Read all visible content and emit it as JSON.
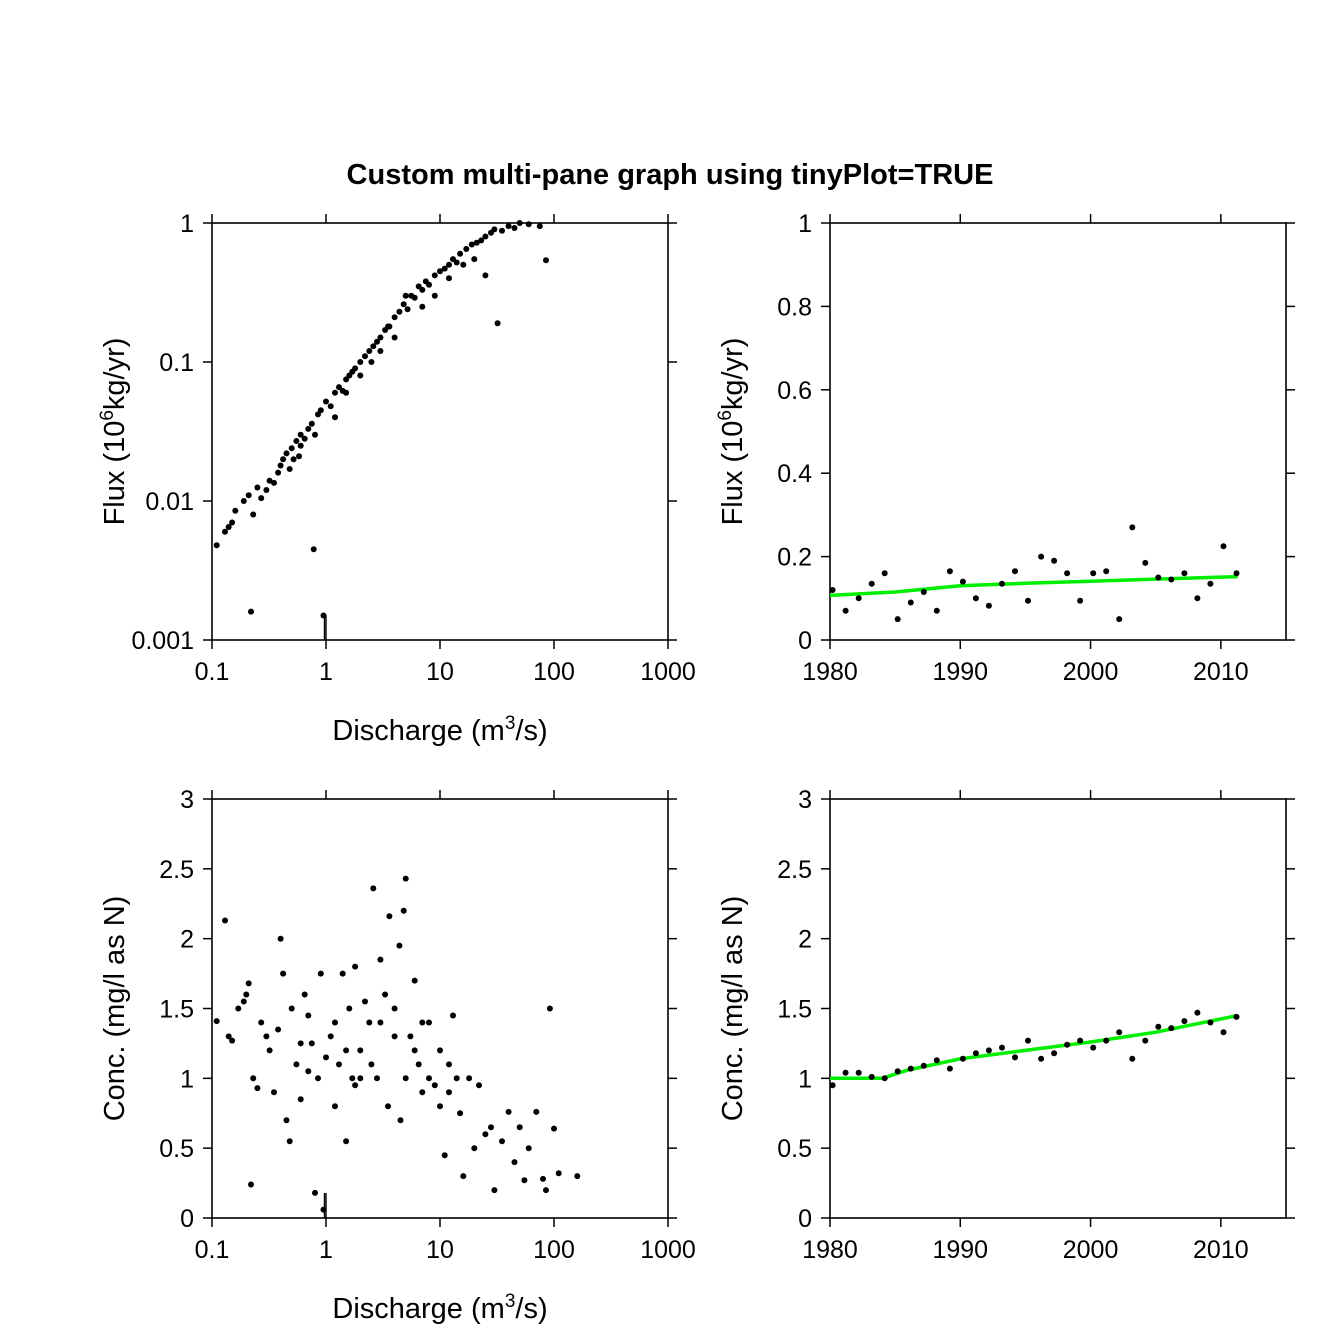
{
  "figure": {
    "title": "Custom multi-pane graph using tinyPlot=TRUE",
    "colors": {
      "points": "#000000",
      "trend": "#00ee00",
      "axes": "#000000"
    }
  },
  "chart_data": [
    {
      "id": "flux_vs_q",
      "type": "scatter",
      "xscale": "log",
      "yscale": "log",
      "xlim": [
        0.1,
        1000
      ],
      "ylim": [
        0.001,
        1
      ],
      "xticks": [
        "0.1",
        "1",
        "10",
        "100",
        "1000"
      ],
      "yticks": [
        "0.001",
        "0.01",
        "0.1",
        "1"
      ],
      "xlabel": {
        "main": "Discharge (m",
        "sup": "3",
        "rest": "/s)"
      },
      "ylabel": {
        "main": "Flux (10",
        "sup": "6",
        "rest": "kg/yr)"
      },
      "points": [
        [
          0.11,
          0.0048
        ],
        [
          0.13,
          0.006
        ],
        [
          0.14,
          0.0065
        ],
        [
          0.15,
          0.007
        ],
        [
          0.16,
          0.0085
        ],
        [
          0.19,
          0.01
        ],
        [
          0.21,
          0.011
        ],
        [
          0.22,
          0.0016
        ],
        [
          0.23,
          0.008
        ],
        [
          0.25,
          0.0125
        ],
        [
          0.27,
          0.0105
        ],
        [
          0.3,
          0.012
        ],
        [
          0.32,
          0.014
        ],
        [
          0.35,
          0.0135
        ],
        [
          0.38,
          0.016
        ],
        [
          0.4,
          0.018
        ],
        [
          0.42,
          0.02
        ],
        [
          0.45,
          0.022
        ],
        [
          0.48,
          0.017
        ],
        [
          0.5,
          0.024
        ],
        [
          0.52,
          0.02
        ],
        [
          0.55,
          0.027
        ],
        [
          0.58,
          0.021
        ],
        [
          0.6,
          0.03
        ],
        [
          0.65,
          0.028
        ],
        [
          0.7,
          0.033
        ],
        [
          0.75,
          0.036
        ],
        [
          0.78,
          0.0045
        ],
        [
          0.8,
          0.03
        ],
        [
          0.85,
          0.042
        ],
        [
          0.9,
          0.045
        ],
        [
          0.95,
          0.0015
        ],
        [
          1.0,
          0.052
        ],
        [
          1.1,
          0.048
        ],
        [
          1.2,
          0.06
        ],
        [
          1.3,
          0.066
        ],
        [
          1.4,
          0.062
        ],
        [
          1.5,
          0.075
        ],
        [
          1.6,
          0.08
        ],
        [
          1.7,
          0.085
        ],
        [
          1.8,
          0.09
        ],
        [
          2.0,
          0.1
        ],
        [
          2.2,
          0.11
        ],
        [
          2.4,
          0.12
        ],
        [
          2.6,
          0.13
        ],
        [
          2.8,
          0.14
        ],
        [
          3.0,
          0.15
        ],
        [
          3.3,
          0.17
        ],
        [
          3.6,
          0.18
        ],
        [
          4.0,
          0.21
        ],
        [
          4.4,
          0.23
        ],
        [
          4.8,
          0.26
        ],
        [
          5.2,
          0.24
        ],
        [
          5.6,
          0.3
        ],
        [
          6.0,
          0.29
        ],
        [
          6.5,
          0.35
        ],
        [
          7.0,
          0.33
        ],
        [
          7.5,
          0.38
        ],
        [
          8.0,
          0.36
        ],
        [
          9.0,
          0.42
        ],
        [
          10,
          0.45
        ],
        [
          11,
          0.47
        ],
        [
          12,
          0.5
        ],
        [
          13,
          0.55
        ],
        [
          14,
          0.52
        ],
        [
          15,
          0.6
        ],
        [
          17,
          0.65
        ],
        [
          19,
          0.7
        ],
        [
          21,
          0.72
        ],
        [
          23,
          0.75
        ],
        [
          25,
          0.8
        ],
        [
          28,
          0.85
        ],
        [
          30,
          0.9
        ],
        [
          32,
          0.19
        ],
        [
          35,
          0.88
        ],
        [
          40,
          0.95
        ],
        [
          45,
          0.92
        ],
        [
          50,
          1.0
        ],
        [
          60,
          0.98
        ],
        [
          75,
          0.95
        ],
        [
          85,
          0.54
        ],
        [
          5,
          0.3
        ],
        [
          2,
          0.08
        ],
        [
          3,
          0.12
        ],
        [
          7,
          0.25
        ],
        [
          12,
          0.4
        ],
        [
          20,
          0.55
        ],
        [
          1.5,
          0.06
        ],
        [
          2.5,
          0.1
        ],
        [
          4,
          0.15
        ],
        [
          0.6,
          0.025
        ],
        [
          1.2,
          0.04
        ],
        [
          16,
          0.5
        ],
        [
          25,
          0.42
        ],
        [
          9,
          0.3
        ],
        [
          3.5,
          0.18
        ]
      ],
      "reference_ticks": [
        0.97,
        1.0
      ]
    },
    {
      "id": "flux_vs_year",
      "type": "scatter+line",
      "xlim": [
        1980,
        2015
      ],
      "ylim": [
        0,
        1
      ],
      "xticks": [
        "1980",
        "1990",
        "2000",
        "2010"
      ],
      "yticks": [
        "0",
        "0.2",
        "0.4",
        "0.6",
        "0.8",
        "1"
      ],
      "ylabel": {
        "main": "Flux (10",
        "sup": "6",
        "rest": "kg/yr)"
      },
      "points": [
        [
          1980.2,
          0.12
        ],
        [
          1981.2,
          0.07
        ],
        [
          1982.2,
          0.1
        ],
        [
          1983.2,
          0.135
        ],
        [
          1984.2,
          0.16
        ],
        [
          1985.2,
          0.05
        ],
        [
          1986.2,
          0.09
        ],
        [
          1987.2,
          0.115
        ],
        [
          1988.2,
          0.07
        ],
        [
          1989.2,
          0.165
        ],
        [
          1990.2,
          0.14
        ],
        [
          1991.2,
          0.1
        ],
        [
          1992.2,
          0.082
        ],
        [
          1993.2,
          0.135
        ],
        [
          1994.2,
          0.165
        ],
        [
          1995.2,
          0.094
        ],
        [
          1996.2,
          0.2
        ],
        [
          1997.2,
          0.19
        ],
        [
          1998.2,
          0.16
        ],
        [
          1999.2,
          0.094
        ],
        [
          2000.2,
          0.16
        ],
        [
          2001.2,
          0.165
        ],
        [
          2002.2,
          0.05
        ],
        [
          2003.2,
          0.27
        ],
        [
          2004.2,
          0.185
        ],
        [
          2005.2,
          0.15
        ],
        [
          2006.2,
          0.145
        ],
        [
          2007.2,
          0.16
        ],
        [
          2008.2,
          0.1
        ],
        [
          2009.2,
          0.135
        ],
        [
          2010.2,
          0.225
        ],
        [
          2011.2,
          0.16
        ]
      ],
      "trend": [
        [
          1980,
          0.107
        ],
        [
          1985,
          0.115
        ],
        [
          1990,
          0.13
        ],
        [
          1995,
          0.136
        ],
        [
          2000,
          0.141
        ],
        [
          2005,
          0.146
        ],
        [
          2011.3,
          0.152
        ]
      ]
    },
    {
      "id": "conc_vs_q",
      "type": "scatter",
      "xscale": "log",
      "xlim": [
        0.1,
        1000
      ],
      "ylim": [
        0,
        3
      ],
      "xticks": [
        "0.1",
        "1",
        "10",
        "100",
        "1000"
      ],
      "yticks": [
        "0",
        "0.5",
        "1",
        "1.5",
        "2",
        "2.5",
        "3"
      ],
      "xlabel": {
        "main": "Discharge (m",
        "sup": "3",
        "rest": "/s)"
      },
      "ylabel": {
        "main": "Conc. (mg/l as N)",
        "sup": "",
        "rest": ""
      },
      "points": [
        [
          0.11,
          1.41
        ],
        [
          0.13,
          2.13
        ],
        [
          0.14,
          1.3
        ],
        [
          0.15,
          1.27
        ],
        [
          0.17,
          1.5
        ],
        [
          0.19,
          1.55
        ],
        [
          0.2,
          1.6
        ],
        [
          0.21,
          1.68
        ],
        [
          0.22,
          0.24
        ],
        [
          0.23,
          1.0
        ],
        [
          0.25,
          0.93
        ],
        [
          0.27,
          1.4
        ],
        [
          0.3,
          1.3
        ],
        [
          0.32,
          1.2
        ],
        [
          0.35,
          0.9
        ],
        [
          0.38,
          1.35
        ],
        [
          0.4,
          2.0
        ],
        [
          0.42,
          1.75
        ],
        [
          0.45,
          0.7
        ],
        [
          0.48,
          0.55
        ],
        [
          0.5,
          1.5
        ],
        [
          0.55,
          1.1
        ],
        [
          0.6,
          0.85
        ],
        [
          0.65,
          1.6
        ],
        [
          0.7,
          1.45
        ],
        [
          0.75,
          1.25
        ],
        [
          0.8,
          0.18
        ],
        [
          0.85,
          1.0
        ],
        [
          0.9,
          1.75
        ],
        [
          0.95,
          0.06
        ],
        [
          1.0,
          1.15
        ],
        [
          1.1,
          1.3
        ],
        [
          1.2,
          0.8
        ],
        [
          1.3,
          1.1
        ],
        [
          1.4,
          1.75
        ],
        [
          1.5,
          0.55
        ],
        [
          1.6,
          1.5
        ],
        [
          1.7,
          1.0
        ],
        [
          1.8,
          1.8
        ],
        [
          2.0,
          1.2
        ],
        [
          2.2,
          1.55
        ],
        [
          2.4,
          1.4
        ],
        [
          2.6,
          2.36
        ],
        [
          2.8,
          1.0
        ],
        [
          3.0,
          1.85
        ],
        [
          3.3,
          1.6
        ],
        [
          3.6,
          2.16
        ],
        [
          4.0,
          1.5
        ],
        [
          4.4,
          1.95
        ],
        [
          4.8,
          2.2
        ],
        [
          5.0,
          2.43
        ],
        [
          5.5,
          1.3
        ],
        [
          6,
          1.7
        ],
        [
          6.5,
          1.1
        ],
        [
          7,
          1.4
        ],
        [
          8,
          1.0
        ],
        [
          9,
          0.95
        ],
        [
          10,
          1.2
        ],
        [
          11,
          0.45
        ],
        [
          12,
          0.9
        ],
        [
          13,
          1.45
        ],
        [
          15,
          0.75
        ],
        [
          16,
          0.3
        ],
        [
          18,
          1.0
        ],
        [
          20,
          0.5
        ],
        [
          22,
          0.95
        ],
        [
          25,
          0.6
        ],
        [
          28,
          0.65
        ],
        [
          30,
          0.2
        ],
        [
          35,
          0.55
        ],
        [
          40,
          0.76
        ],
        [
          45,
          0.4
        ],
        [
          50,
          0.65
        ],
        [
          55,
          0.27
        ],
        [
          60,
          0.5
        ],
        [
          70,
          0.76
        ],
        [
          80,
          0.28
        ],
        [
          85,
          0.2
        ],
        [
          92,
          1.5
        ],
        [
          100,
          0.64
        ],
        [
          110,
          0.32
        ],
        [
          160,
          0.3
        ],
        [
          1.5,
          1.2
        ],
        [
          2,
          1.0
        ],
        [
          3,
          1.4
        ],
        [
          2.5,
          1.1
        ],
        [
          4,
          1.3
        ],
        [
          5,
          1.0
        ],
        [
          6,
          1.2
        ],
        [
          8,
          1.4
        ],
        [
          10,
          0.8
        ],
        [
          14,
          1.0
        ],
        [
          3.5,
          0.8
        ],
        [
          1.2,
          1.4
        ],
        [
          0.7,
          1.05
        ],
        [
          0.6,
          1.25
        ],
        [
          1.8,
          0.95
        ],
        [
          4.5,
          0.7
        ],
        [
          7,
          0.9
        ],
        [
          12,
          1.1
        ]
      ],
      "reference_ticks": [
        0.97,
        1.0
      ]
    },
    {
      "id": "conc_vs_year",
      "type": "scatter+line",
      "xlim": [
        1980,
        2015
      ],
      "ylim": [
        0,
        3
      ],
      "xticks": [
        "1980",
        "1990",
        "2000",
        "2010"
      ],
      "yticks": [
        "0",
        "0.5",
        "1",
        "1.5",
        "2",
        "2.5",
        "3"
      ],
      "ylabel": {
        "main": "Conc. (mg/l as N)",
        "sup": "",
        "rest": ""
      },
      "points": [
        [
          1980.2,
          0.95
        ],
        [
          1981.2,
          1.04
        ],
        [
          1982.2,
          1.04
        ],
        [
          1983.2,
          1.01
        ],
        [
          1984.2,
          1.0
        ],
        [
          1985.2,
          1.05
        ],
        [
          1986.2,
          1.07
        ],
        [
          1987.2,
          1.09
        ],
        [
          1988.2,
          1.13
        ],
        [
          1989.2,
          1.07
        ],
        [
          1990.2,
          1.14
        ],
        [
          1991.2,
          1.18
        ],
        [
          1992.2,
          1.2
        ],
        [
          1993.2,
          1.22
        ],
        [
          1994.2,
          1.15
        ],
        [
          1995.2,
          1.27
        ],
        [
          1996.2,
          1.14
        ],
        [
          1997.2,
          1.18
        ],
        [
          1998.2,
          1.24
        ],
        [
          1999.2,
          1.27
        ],
        [
          2000.2,
          1.22
        ],
        [
          2001.2,
          1.27
        ],
        [
          2002.2,
          1.33
        ],
        [
          2003.2,
          1.14
        ],
        [
          2004.2,
          1.27
        ],
        [
          2005.2,
          1.37
        ],
        [
          2006.2,
          1.36
        ],
        [
          2007.2,
          1.41
        ],
        [
          2008.2,
          1.47
        ],
        [
          2009.2,
          1.4
        ],
        [
          2010.2,
          1.33
        ],
        [
          2011.2,
          1.44
        ]
      ],
      "trend": [
        [
          1980,
          1.0
        ],
        [
          1982,
          1.0
        ],
        [
          1984,
          1.0
        ],
        [
          1986,
          1.06
        ],
        [
          1990,
          1.14
        ],
        [
          1995,
          1.2
        ],
        [
          2000,
          1.26
        ],
        [
          2005,
          1.33
        ],
        [
          2011.3,
          1.45
        ]
      ]
    }
  ]
}
